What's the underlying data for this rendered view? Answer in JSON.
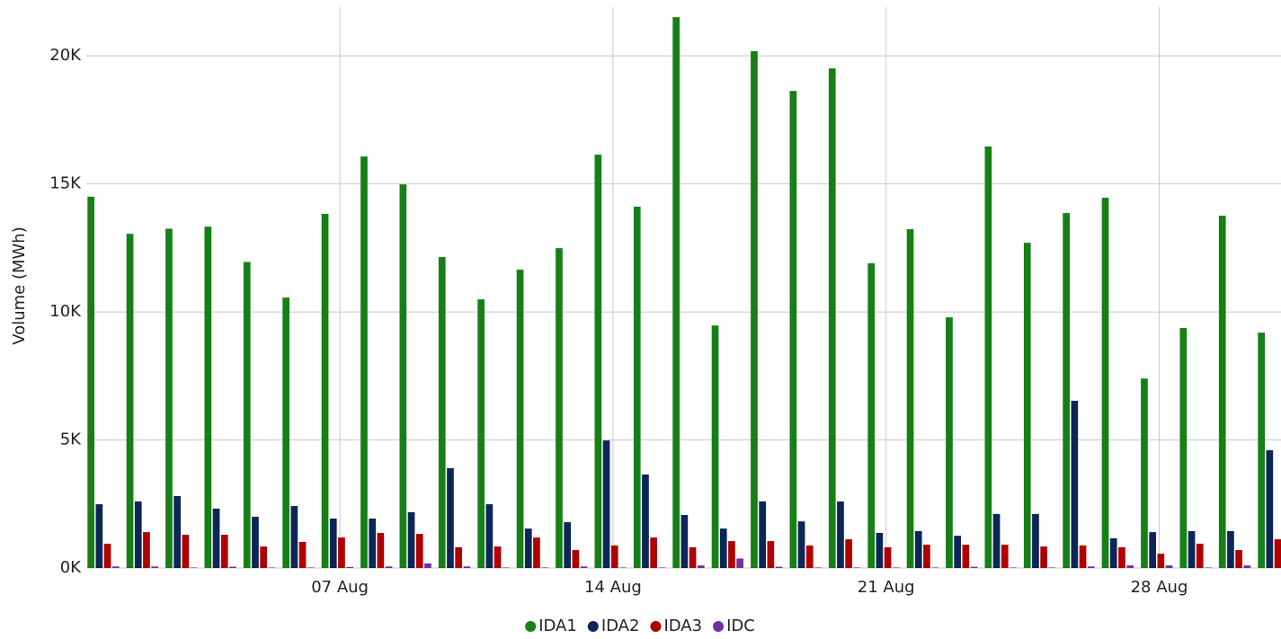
{
  "chart_data": {
    "type": "bar",
    "y_label": "Volume (MWh)",
    "categories": [
      null,
      null,
      null,
      null,
      null,
      null,
      "07 Aug",
      null,
      null,
      null,
      null,
      null,
      null,
      "14 Aug",
      null,
      null,
      null,
      null,
      null,
      null,
      "21 Aug",
      null,
      null,
      null,
      null,
      null,
      null,
      "28 Aug",
      null,
      null,
      null
    ],
    "series": [
      {
        "name": "IDA1",
        "color": "#168016",
        "values": [
          14500,
          13050,
          13250,
          13330,
          11950,
          10560,
          13830,
          16070,
          14980,
          12140,
          10490,
          11650,
          12490,
          16140,
          14110,
          21510,
          9470,
          20180,
          18630,
          19510,
          11900,
          13230,
          9790,
          16460,
          12700,
          13860,
          14460,
          7400,
          9370,
          13760,
          9190
        ]
      },
      {
        "name": "IDA2",
        "color": "#0c2657",
        "values": [
          2490,
          2600,
          2810,
          2320,
          2000,
          2420,
          1930,
          1930,
          2180,
          3900,
          2490,
          1540,
          1790,
          4980,
          3650,
          2070,
          1540,
          2600,
          1820,
          2600,
          1370,
          1440,
          1260,
          2110,
          2110,
          6530,
          1160,
          1400,
          1440,
          1440,
          4600
        ]
      },
      {
        "name": "IDA3",
        "color": "#b00000",
        "values": [
          950,
          1400,
          1300,
          1300,
          840,
          1020,
          1190,
          1370,
          1330,
          810,
          840,
          1190,
          700,
          880,
          1190,
          810,
          1050,
          1050,
          880,
          1120,
          810,
          910,
          910,
          910,
          840,
          880,
          810,
          560,
          950,
          700,
          1120
        ]
      },
      {
        "name": "IDC",
        "color": "#7030a0",
        "values": [
          60,
          60,
          20,
          50,
          20,
          20,
          40,
          60,
          180,
          60,
          20,
          20,
          60,
          20,
          20,
          100,
          370,
          50,
          20,
          20,
          20,
          20,
          50,
          20,
          20,
          60,
          100,
          100,
          20,
          100,
          40
        ]
      }
    ],
    "ylim": [
      0,
      21900
    ],
    "yticks": [
      {
        "value": 0,
        "label": "0K"
      },
      {
        "value": 5000,
        "label": "5K"
      },
      {
        "value": 10000,
        "label": "10K"
      },
      {
        "value": 15000,
        "label": "15K"
      },
      {
        "value": 20000,
        "label": "20K"
      }
    ],
    "grid": true,
    "legend": "bottom"
  }
}
